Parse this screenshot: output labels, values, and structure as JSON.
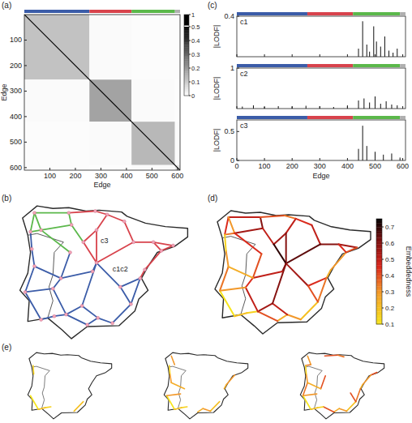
{
  "network": {
    "lon": [
      -8.7,
      -8.4,
      -5.8,
      -3.8,
      -2.9,
      -5.6,
      -7.9,
      -3.7,
      -0.9,
      2.1,
      0.6,
      1.2,
      -4.7,
      -5.7,
      -3.7,
      -0.4,
      -0.05,
      -1.9,
      -1.1,
      -2.5,
      -3.6,
      -4.4,
      -6.0,
      -4.8,
      -6.9,
      -7.0,
      -6.4,
      -9.1,
      -8.6,
      -8.4,
      -7.9,
      -4.0,
      -1.6
    ],
    "lat": [
      42.2,
      43.3,
      43.3,
      43.4,
      43.2,
      42.6,
      42.3,
      42.3,
      41.6,
      41.4,
      41.6,
      41.1,
      41.6,
      41.0,
      40.4,
      39.5,
      40.0,
      39.0,
      38.0,
      36.9,
      37.2,
      36.8,
      37.4,
      37.9,
      37.3,
      38.9,
      39.5,
      38.7,
      41.2,
      40.2,
      37.1,
      39.9,
      42.8
    ],
    "source": [
      1,
      1,
      0,
      6,
      2,
      1,
      5,
      6,
      2,
      3,
      4,
      7,
      4,
      32,
      8,
      10,
      9,
      11,
      16,
      8,
      7,
      12,
      10,
      14,
      14,
      17,
      15,
      18,
      19,
      20,
      21,
      20,
      23,
      22,
      14,
      31,
      26,
      25,
      13,
      28,
      29,
      27,
      30,
      28,
      29,
      27,
      17
    ],
    "target": [
      0,
      2,
      6,
      5,
      5,
      6,
      12,
      13,
      3,
      4,
      7,
      12,
      32,
      8,
      10,
      9,
      11,
      16,
      15,
      14,
      14,
      14,
      11,
      31,
      17,
      15,
      18,
      19,
      20,
      21,
      22,
      23,
      22,
      24,
      23,
      26,
      25,
      22,
      26,
      29,
      27,
      30,
      24,
      0,
      26,
      25,
      18
    ],
    "community": [
      2,
      2,
      2,
      2,
      2,
      2,
      2,
      2,
      1,
      1,
      1,
      1,
      1,
      1,
      1,
      1,
      1,
      1,
      1,
      1,
      1,
      1,
      1,
      0,
      0,
      0,
      0,
      0,
      0,
      0,
      0,
      0,
      0,
      0,
      0,
      0,
      0,
      0,
      0,
      0,
      0,
      0,
      0,
      0,
      0,
      0,
      0
    ],
    "embeddedness": [
      0.45,
      0.5,
      0.35,
      0.55,
      0.6,
      0.3,
      0.5,
      0.45,
      0.4,
      0.35,
      0.5,
      0.55,
      0.45,
      0.5,
      0.6,
      0.55,
      0.4,
      0.3,
      0.25,
      0.65,
      0.6,
      0.7,
      0.45,
      0.6,
      0.55,
      0.45,
      0.35,
      0.2,
      0.3,
      0.25,
      0.4,
      0.5,
      0.55,
      0.15,
      0.6,
      0.5,
      0.45,
      0.5,
      0.4,
      0.3,
      0.35,
      0.1,
      0.2,
      0.15,
      0.25,
      0.3,
      0.4
    ]
  },
  "chart_data": [
    {
      "type": "heatmap",
      "panel": "(a)",
      "x_label": "Edge",
      "y_label": "Edge",
      "xlim": [
        0,
        610
      ],
      "ylim": [
        0,
        610
      ],
      "xticks": [
        100,
        200,
        300,
        400,
        500,
        600
      ],
      "yticks": [
        100,
        200,
        300,
        400,
        500,
        600
      ],
      "communities": [
        {
          "color": "#3b5ca8",
          "start": 0,
          "end": 255
        },
        {
          "color": "#d8434c",
          "start": 255,
          "end": 420
        },
        {
          "color": "#5bb84b",
          "start": 420,
          "end": 590
        },
        {
          "color": "#b0b0b0",
          "start": 590,
          "end": 610
        }
      ],
      "cells": {
        "bounds": [
          0,
          255,
          420,
          590,
          610
        ],
        "values": [
          [
            0.12,
            0.01,
            0.005,
            0.005
          ],
          [
            0.01,
            0.18,
            0.01,
            0.005
          ],
          [
            0.005,
            0.01,
            0.14,
            0.01
          ],
          [
            0.005,
            0.005,
            0.01,
            0.05
          ]
        ]
      },
      "diagonal": 1,
      "colorbar": {
        "range": [
          0,
          1
        ],
        "ticks": [
          0,
          0.1,
          0.2,
          0.3,
          0.4,
          0.5,
          1
        ]
      }
    },
    {
      "type": "network_map",
      "panel": "(b)",
      "node_color": "#f3a5b7",
      "annotations": [
        {
          "text": "c1c2",
          "edge": 24
        },
        {
          "text": "c3",
          "edge": 20
        }
      ]
    },
    {
      "type": "spike",
      "panel": "(c)",
      "x_label": "Edge",
      "xlim": [
        0,
        610
      ],
      "xticks": [
        0,
        100,
        200,
        300,
        400,
        500,
        600
      ],
      "subplots": [
        {
          "title": "c1",
          "y_label": "|LODF|",
          "ylim": [
            0,
            0.4
          ],
          "yticks": [
            0.4
          ],
          "x": [
            440,
            455,
            470,
            480,
            495,
            505,
            520,
            535,
            550,
            565,
            580
          ],
          "values": [
            0.08,
            0.35,
            0.12,
            0.05,
            0.3,
            0.15,
            0.1,
            0.2,
            0.06,
            0.04,
            0.08
          ]
        },
        {
          "title": "c2",
          "y_label": "|LODF|",
          "ylim": [
            0,
            1
          ],
          "yticks": [
            1
          ],
          "x": [
            20,
            60,
            100,
            150,
            200,
            250,
            300,
            350,
            400,
            440,
            460,
            480,
            500,
            520,
            540,
            560,
            580
          ],
          "values": [
            0.05,
            0.08,
            0.04,
            0.06,
            0.05,
            0.07,
            0.06,
            0.04,
            0.08,
            0.2,
            0.25,
            0.15,
            0.3,
            0.12,
            0.18,
            0.1,
            0.08
          ]
        },
        {
          "title": "c3",
          "y_label": "|LODF|",
          "ylim": [
            0,
            0.7
          ],
          "yticks": [
            0,
            0.5
          ],
          "x": [
            440,
            455,
            470,
            500,
            530,
            560,
            590
          ],
          "values": [
            0.2,
            0.6,
            0.25,
            0.15,
            0.1,
            0.12,
            0.05
          ]
        }
      ]
    },
    {
      "type": "network_map",
      "panel": "(d)",
      "colorbar": {
        "label": "Embeddedness",
        "range": [
          0.1,
          0.75
        ],
        "ticks": [
          0.1,
          0.2,
          0.3,
          0.4,
          0.5,
          0.6,
          0.7
        ]
      }
    },
    {
      "type": "network_map",
      "panel": "(e)",
      "subsets": [
        [
          27,
          33,
          41,
          42,
          43
        ],
        [
          5,
          17,
          18,
          27,
          28,
          29,
          33,
          39,
          41,
          42,
          43,
          44,
          45
        ],
        [
          2,
          5,
          8,
          9,
          16,
          17,
          18,
          26,
          27,
          28,
          29,
          30,
          33,
          38,
          39,
          40,
          41,
          42,
          43,
          44,
          45,
          46
        ]
      ]
    }
  ]
}
